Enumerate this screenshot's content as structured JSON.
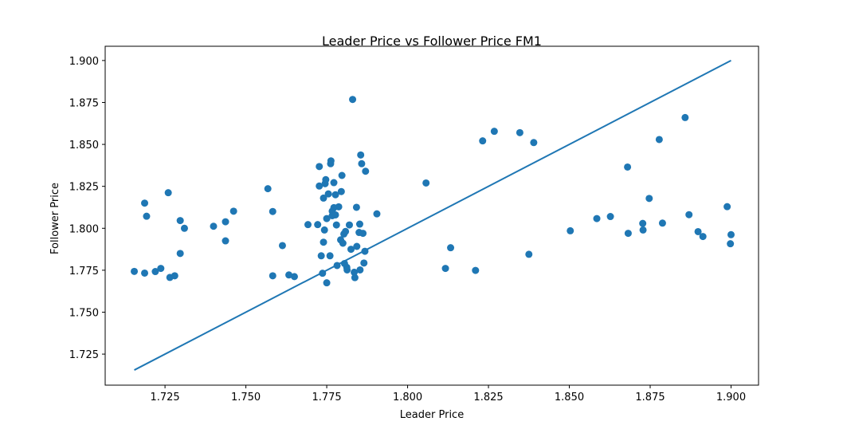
{
  "chart_data": {
    "type": "scatter",
    "title": "Leader Price vs Follower Price FM1",
    "xlabel": "Leader Price",
    "ylabel": "Follower Price",
    "xlim": [
      1.7065,
      1.9085
    ],
    "ylim": [
      1.7065,
      1.9085
    ],
    "x_ticks": [
      "1.725",
      "1.750",
      "1.775",
      "1.800",
      "1.825",
      "1.850",
      "1.875",
      "1.900"
    ],
    "y_ticks": [
      "1.725",
      "1.750",
      "1.775",
      "1.800",
      "1.825",
      "1.850",
      "1.875",
      "1.900"
    ],
    "grid": false,
    "legend": "none",
    "series_color": "#1f77b4",
    "reference_line": {
      "x": [
        1.7155,
        1.9
      ],
      "y": [
        1.7155,
        1.9
      ]
    },
    "points": [
      [
        1.7155,
        1.7743
      ],
      [
        1.7187,
        1.815
      ],
      [
        1.7193,
        1.8072
      ],
      [
        1.7187,
        1.7733
      ],
      [
        1.722,
        1.7742
      ],
      [
        1.7237,
        1.7761
      ],
      [
        1.726,
        1.8212
      ],
      [
        1.7265,
        1.7707
      ],
      [
        1.728,
        1.7717
      ],
      [
        1.7297,
        1.8046
      ],
      [
        1.731,
        1.8
      ],
      [
        1.7297,
        1.785
      ],
      [
        1.74,
        1.8012
      ],
      [
        1.7437,
        1.8039
      ],
      [
        1.7437,
        1.7925
      ],
      [
        1.7462,
        1.8102
      ],
      [
        1.7568,
        1.8236
      ],
      [
        1.7583,
        1.81
      ],
      [
        1.7583,
        1.7717
      ],
      [
        1.7613,
        1.7897
      ],
      [
        1.7633,
        1.7722
      ],
      [
        1.765,
        1.7712
      ],
      [
        1.7692,
        1.8022
      ],
      [
        1.7722,
        1.8022
      ],
      [
        1.7727,
        1.8368
      ],
      [
        1.7727,
        1.8252
      ],
      [
        1.7733,
        1.7836
      ],
      [
        1.7737,
        1.7732
      ],
      [
        1.774,
        1.818
      ],
      [
        1.774,
        1.7917
      ],
      [
        1.7743,
        1.799
      ],
      [
        1.7745,
        1.8266
      ],
      [
        1.7747,
        1.829
      ],
      [
        1.775,
        1.8058
      ],
      [
        1.775,
        1.7675
      ],
      [
        1.7755,
        1.8205
      ],
      [
        1.776,
        1.7836
      ],
      [
        1.7762,
        1.8385
      ],
      [
        1.7763,
        1.8402
      ],
      [
        1.7767,
        1.8102
      ],
      [
        1.7767,
        1.8075
      ],
      [
        1.7772,
        1.8272
      ],
      [
        1.7772,
        1.8123
      ],
      [
        1.7777,
        1.808
      ],
      [
        1.7777,
        1.82
      ],
      [
        1.778,
        1.802
      ],
      [
        1.7782,
        1.7778
      ],
      [
        1.7787,
        1.8128
      ],
      [
        1.7795,
        1.8219
      ],
      [
        1.7793,
        1.7931
      ],
      [
        1.7797,
        1.8315
      ],
      [
        1.78,
        1.7911
      ],
      [
        1.7803,
        1.7966
      ],
      [
        1.7805,
        1.779
      ],
      [
        1.7808,
        1.7981
      ],
      [
        1.7812,
        1.7767
      ],
      [
        1.7813,
        1.7752
      ],
      [
        1.782,
        1.802
      ],
      [
        1.7825,
        1.7875
      ],
      [
        1.783,
        1.8768
      ],
      [
        1.7835,
        1.7738
      ],
      [
        1.7837,
        1.7706
      ],
      [
        1.7842,
        1.8125
      ],
      [
        1.7843,
        1.7892
      ],
      [
        1.785,
        1.7975
      ],
      [
        1.7852,
        1.8025
      ],
      [
        1.7853,
        1.7752
      ],
      [
        1.7855,
        1.8437
      ],
      [
        1.7858,
        1.8385
      ],
      [
        1.7862,
        1.797
      ],
      [
        1.7865,
        1.7793
      ],
      [
        1.7868,
        1.7863
      ],
      [
        1.787,
        1.834
      ],
      [
        1.7905,
        1.8086
      ],
      [
        1.8057,
        1.827
      ],
      [
        1.8117,
        1.7761
      ],
      [
        1.8133,
        1.7884
      ],
      [
        1.821,
        1.7749
      ],
      [
        1.8232,
        1.8521
      ],
      [
        1.8268,
        1.8578
      ],
      [
        1.8347,
        1.857
      ],
      [
        1.8375,
        1.7845
      ],
      [
        1.839,
        1.8511
      ],
      [
        1.8503,
        1.7985
      ],
      [
        1.8585,
        1.8058
      ],
      [
        1.8627,
        1.807
      ],
      [
        1.868,
        1.8365
      ],
      [
        1.8682,
        1.797
      ],
      [
        1.8727,
        1.8029
      ],
      [
        1.8728,
        1.799
      ],
      [
        1.8747,
        1.8178
      ],
      [
        1.8778,
        1.8529
      ],
      [
        1.8788,
        1.8031
      ],
      [
        1.8858,
        1.866
      ],
      [
        1.887,
        1.8081
      ],
      [
        1.8898,
        1.798
      ],
      [
        1.8913,
        1.7951
      ],
      [
        1.8988,
        1.8129
      ],
      [
        1.8998,
        1.7908
      ],
      [
        1.9,
        1.7962
      ]
    ]
  }
}
